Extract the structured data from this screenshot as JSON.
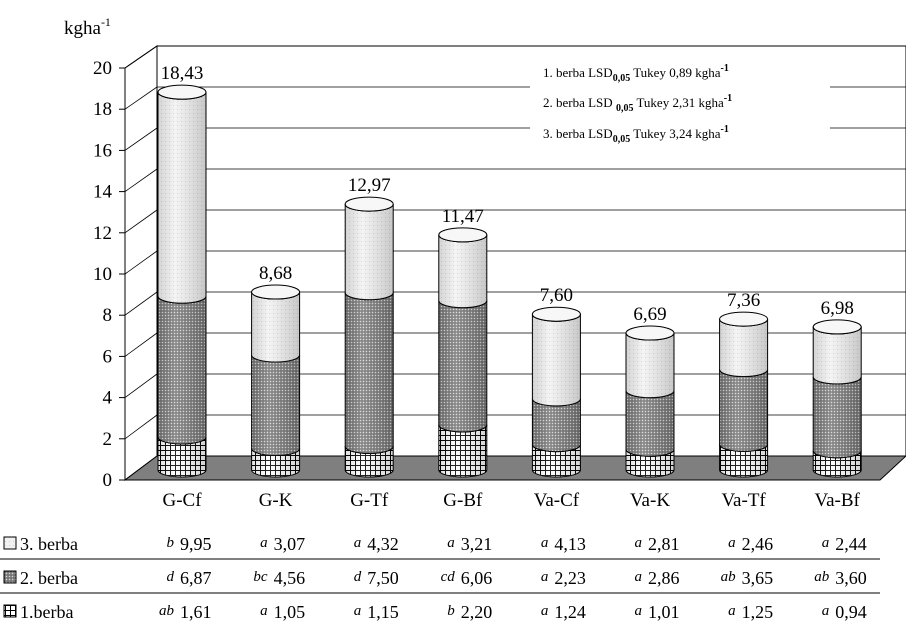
{
  "chart_data": {
    "type": "bar",
    "stacked": true,
    "style": "3d-cylinder",
    "y_unit": "kgha",
    "y_unit_exponent": "-1",
    "ylim": [
      0,
      20
    ],
    "yticks": [
      "0",
      "2",
      "4",
      "6",
      "8",
      "10",
      "12",
      "14",
      "16",
      "18",
      "20"
    ],
    "grid": true,
    "categories": [
      "G-Cf",
      "G-K",
      "G-Tf",
      "G-Bf",
      "Va-Cf",
      "Va-K",
      "Va-Tf",
      "Va-Bf"
    ],
    "totals": [
      18.43,
      8.68,
      12.97,
      11.47,
      7.6,
      6.69,
      7.36,
      6.98
    ],
    "total_labels": [
      "18,43",
      "8,68",
      "12,97",
      "11,47",
      "7,60",
      "6,69",
      "7,36",
      "6,98"
    ],
    "series": [
      {
        "name": "1.berba",
        "values": [
          1.61,
          1.05,
          1.15,
          2.2,
          1.24,
          1.01,
          1.25,
          0.94
        ],
        "labels": [
          "1,61",
          "1,05",
          "1,15",
          "2,20",
          "1,24",
          "1,01",
          "1,25",
          "0,94"
        ],
        "letters": [
          "ab",
          "a",
          "a",
          "b",
          "a",
          "a",
          "a",
          "a"
        ],
        "pattern": "grid"
      },
      {
        "name": "2. berba",
        "values": [
          6.87,
          4.56,
          7.5,
          6.06,
          2.23,
          2.86,
          3.65,
          3.6
        ],
        "labels": [
          "6,87",
          "4,56",
          "7,50",
          "6,06",
          "2,23",
          "2,86",
          "3,65",
          "3,60"
        ],
        "letters": [
          "d",
          "bc",
          "d",
          "cd",
          "a",
          "a",
          "ab",
          "ab"
        ],
        "pattern": "dark-check"
      },
      {
        "name": "3. berba",
        "values": [
          9.95,
          3.07,
          4.32,
          3.21,
          4.13,
          2.81,
          2.46,
          2.44
        ],
        "labels": [
          "9,95",
          "3,07",
          "4,32",
          "3,21",
          "4,13",
          "2,81",
          "2,46",
          "2,44"
        ],
        "letters": [
          "b",
          "a",
          "a",
          "a",
          "a",
          "a",
          "a",
          "a"
        ],
        "pattern": "light"
      }
    ],
    "legend_box": {
      "placement": "top-right",
      "lines": [
        {
          "prefix": "1. berba LSD",
          "sub": "0,05",
          "mid": " Tukey 0,89 kgha",
          "sup": "-1"
        },
        {
          "prefix": "2. berba LSD ",
          "sub": "0,05",
          "mid": " Tukey 2,31 kgha",
          "sup": "-1"
        },
        {
          "prefix": "3. berba LSD",
          "sub": "0,05",
          "mid": " Tukey  3,24 kgha",
          "sup": "-1"
        }
      ]
    },
    "data_table_rows": [
      "3. berba",
      "2. berba",
      "1.berba"
    ]
  }
}
